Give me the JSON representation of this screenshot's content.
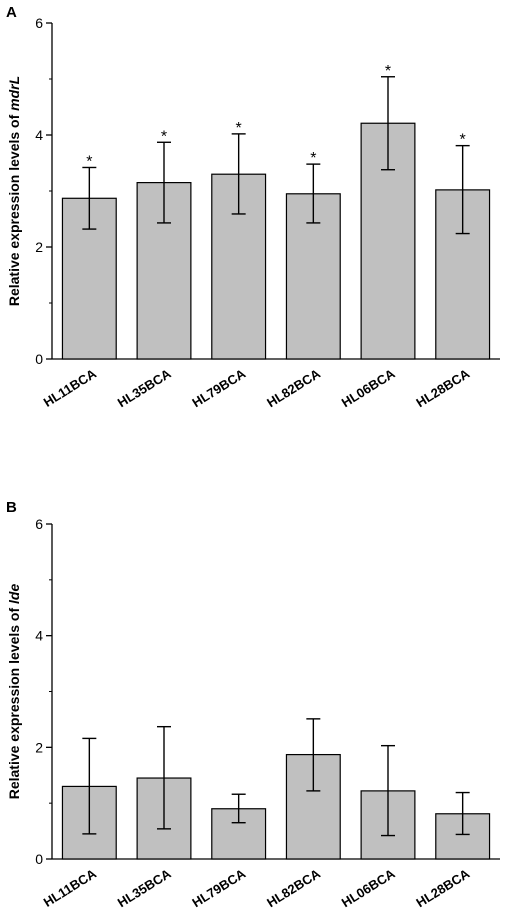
{
  "chart_data": [
    {
      "type": "bar",
      "panel": "A",
      "ylabel_prefix": "Relative expression levels of ",
      "ylabel_gene": "mdrL",
      "ylim": [
        0,
        6
      ],
      "yticks": [
        "0",
        "2",
        "4",
        "6"
      ],
      "categories": [
        "HL11BCA",
        "HL35BCA",
        "HL79BCA",
        "HL82BCA",
        "HL06BCA",
        "HL28BCA"
      ],
      "values": [
        2.87,
        3.15,
        3.3,
        2.95,
        4.21,
        3.02
      ],
      "error_low": [
        2.32,
        2.43,
        2.59,
        2.43,
        3.38,
        2.24
      ],
      "error_high": [
        3.42,
        3.87,
        4.02,
        3.48,
        5.04,
        3.81
      ],
      "significance": [
        "*",
        "*",
        "*",
        "*",
        "*",
        "*"
      ],
      "bar_color": "#c0c0c0"
    },
    {
      "type": "bar",
      "panel": "B",
      "ylabel_prefix": "Relative expression levels of ",
      "ylabel_gene": "lde",
      "ylim": [
        0,
        6
      ],
      "yticks": [
        "0",
        "2",
        "4",
        "6"
      ],
      "categories": [
        "HL11BCA",
        "HL35BCA",
        "HL79BCA",
        "HL82BCA",
        "HL06BCA",
        "HL28BCA"
      ],
      "values": [
        1.3,
        1.45,
        0.9,
        1.87,
        1.22,
        0.81
      ],
      "error_low": [
        0.45,
        0.54,
        0.65,
        1.22,
        0.42,
        0.44
      ],
      "error_high": [
        2.16,
        2.37,
        1.16,
        2.51,
        2.03,
        1.19
      ],
      "significance": [
        "",
        "",
        "",
        "",
        "",
        ""
      ],
      "bar_color": "#c0c0c0"
    }
  ]
}
